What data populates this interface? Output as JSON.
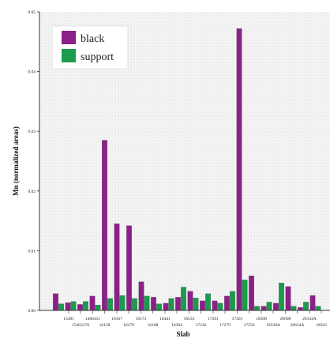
{
  "chart_data": {
    "type": "bar",
    "xlabel": "Slab",
    "ylabel": "Mn (normalized areas)",
    "ylim": [
      0,
      0.05
    ],
    "yticks": [
      {
        "value": 0.0,
        "label": "0.00"
      },
      {
        "value": 0.01,
        "label": "0.01"
      },
      {
        "value": 0.02,
        "label": "0.02"
      },
      {
        "value": 0.03,
        "label": "0.03"
      },
      {
        "value": 0.04,
        "label": "0.04"
      },
      {
        "value": 0.05,
        "label": "0.05"
      }
    ],
    "grid": true,
    "legend": "top-left",
    "categories": [
      "15481",
      "15463178",
      "1466451",
      "16128",
      "16167",
      "16170",
      "16173",
      "16188",
      "16441",
      "16304",
      "16533",
      "17236",
      "17261",
      "17279",
      "17301",
      "17550",
      "18308",
      "19330A",
      "20008",
      "20634A",
      "20144A",
      "18503"
    ],
    "tick_labels_row1": [
      "15481",
      "1466451",
      "16167",
      "16173",
      "16441",
      "16533",
      "17261",
      "17301",
      "18308",
      "20008",
      "20144A"
    ],
    "tick_labels_row2": [
      "15463178",
      "16128",
      "16170",
      "16188",
      "16304",
      "17236",
      "17279",
      "17550",
      "19330A",
      "20634A",
      "18503"
    ],
    "series": [
      {
        "name": "black",
        "color": "#8c1f88",
        "values": [
          0.0028,
          0.0013,
          0.001,
          0.0024,
          0.0285,
          0.0145,
          0.0142,
          0.0048,
          0.0022,
          0.0012,
          0.0022,
          0.0032,
          0.0016,
          0.0016,
          0.0024,
          0.0472,
          0.0058,
          0.0007,
          0.0012,
          0.004,
          0.0005,
          0.0025
        ]
      },
      {
        "name": "support",
        "color": "#1a9b4e",
        "values": [
          0.0011,
          0.0015,
          0.0015,
          0.0009,
          0.002,
          0.0025,
          0.002,
          0.0024,
          0.0011,
          0.002,
          0.0039,
          0.0021,
          0.0028,
          0.0012,
          0.0032,
          0.0051,
          0.0007,
          0.0014,
          0.0046,
          0.0007,
          0.0014,
          0.0007
        ]
      }
    ]
  }
}
